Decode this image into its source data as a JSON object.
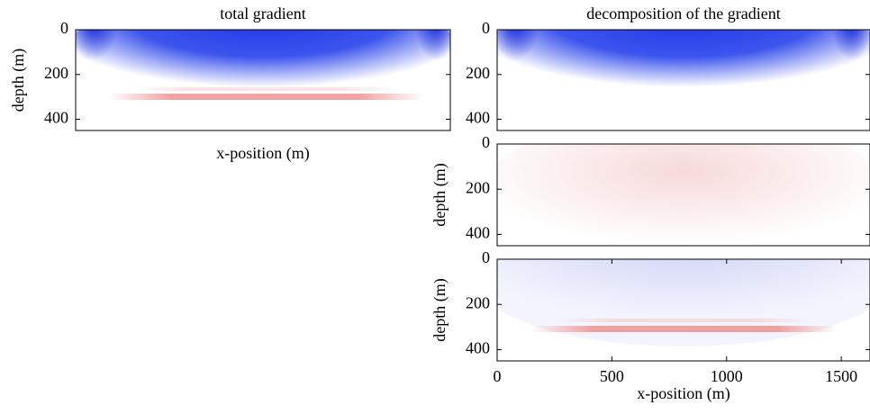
{
  "chart_data": [
    {
      "type": "heatmap",
      "title": "total gradient",
      "xlabel": "x-position (m)",
      "ylabel": "depth (m)",
      "xlim": [
        0,
        1625
      ],
      "ylim": [
        0,
        450
      ],
      "yticks": [
        0,
        200,
        400
      ],
      "y_inverted": true
    },
    {
      "type": "heatmap",
      "title": "decomposition of the gradient",
      "ylim": [
        0,
        450
      ],
      "xlim": [
        0,
        1625
      ],
      "yticks": [
        0,
        200,
        400
      ],
      "y_inverted": true
    },
    {
      "type": "heatmap",
      "ylabel": "depth (m)",
      "xlim": [
        0,
        1625
      ],
      "ylim": [
        0,
        450
      ],
      "yticks": [
        0,
        200,
        400
      ],
      "y_inverted": true
    },
    {
      "type": "heatmap",
      "xlabel": "x-position (m)",
      "ylabel": "depth (m)",
      "xlim": [
        0,
        1625
      ],
      "ylim": [
        0,
        450
      ],
      "xticks": [
        0,
        500,
        1000,
        1500
      ],
      "yticks": [
        0,
        200,
        400
      ],
      "y_inverted": true
    }
  ]
}
